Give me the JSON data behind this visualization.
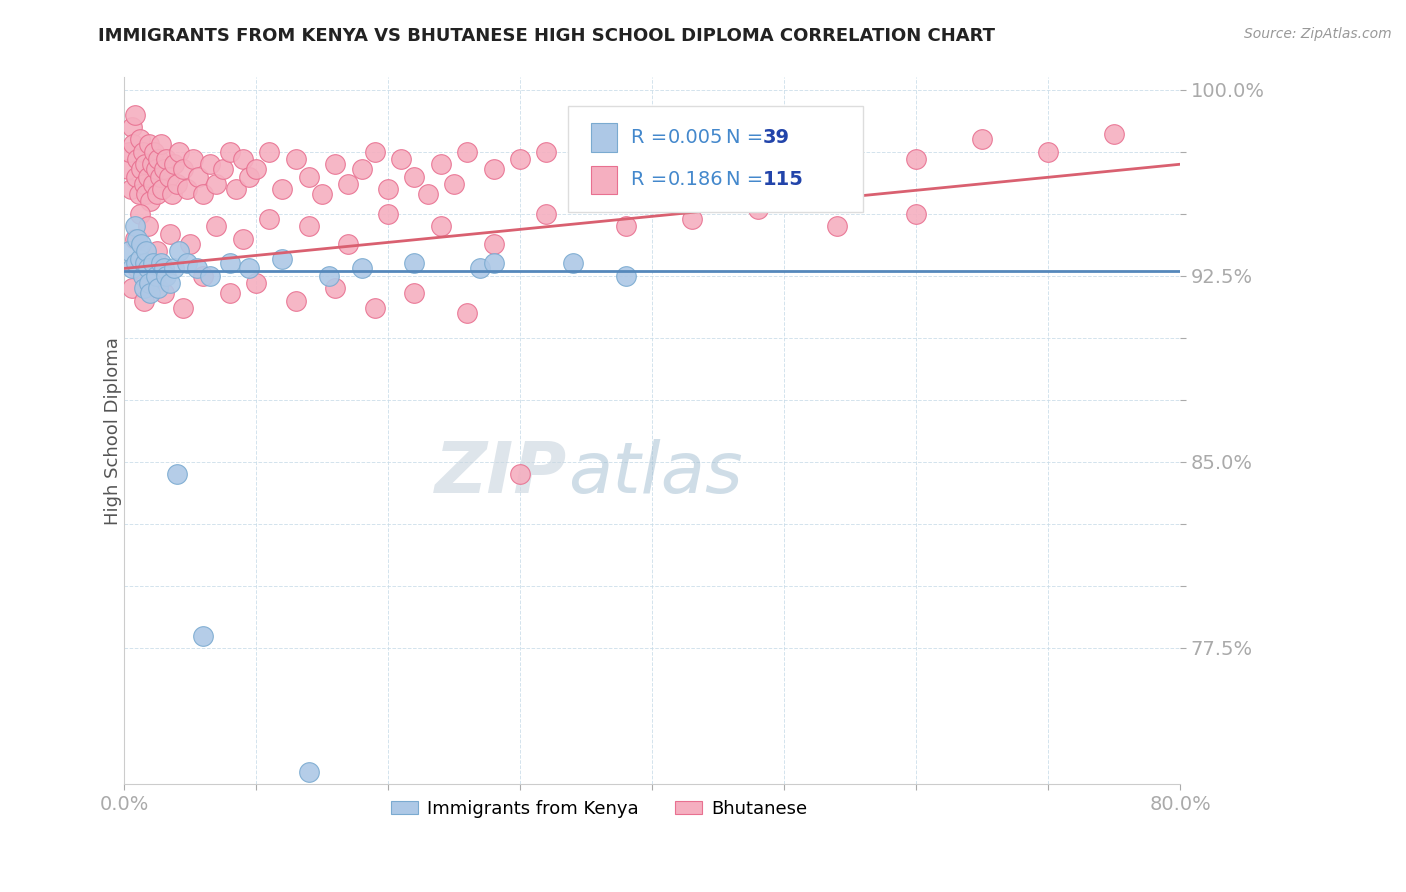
{
  "title": "IMMIGRANTS FROM KENYA VS BHUTANESE HIGH SCHOOL DIPLOMA CORRELATION CHART",
  "source_text": "Source: ZipAtlas.com",
  "ylabel": "High School Diploma",
  "xlim": [
    0.0,
    0.8
  ],
  "ylim": [
    0.72,
    1.005
  ],
  "kenya_R": 0.005,
  "kenya_N": 39,
  "bhutan_R": 0.186,
  "bhutan_N": 115,
  "kenya_color": "#adc8e6",
  "bhutan_color": "#f5afc0",
  "kenya_edge_color": "#7aaad0",
  "bhutan_edge_color": "#e87090",
  "trend_kenya_color": "#5588bb",
  "trend_bhutan_color": "#d96070",
  "grid_color": "#c8dce8",
  "axis_label_color": "#4488cc",
  "title_color": "#222222",
  "watermark_zip_color": "#c8d4e0",
  "watermark_atlas_color": "#a8c4d8",
  "ytick_vals": [
    0.775,
    0.8,
    0.825,
    0.85,
    0.875,
    0.9,
    0.925,
    0.975,
    1.0
  ],
  "ytick_show": {
    "0.775": "77.5%",
    "0.80": "",
    "0.825": "",
    "0.85": "85.0%",
    "0.875": "",
    "0.90": "",
    "0.925": "92.5%",
    "0.975": "",
    "1.00": "100.0%"
  },
  "kenya_scatter_x": [
    0.004,
    0.006,
    0.008,
    0.009,
    0.01,
    0.012,
    0.013,
    0.014,
    0.015,
    0.016,
    0.017,
    0.018,
    0.019,
    0.02,
    0.022,
    0.024,
    0.026,
    0.028,
    0.03,
    0.032,
    0.035,
    0.038,
    0.042,
    0.048,
    0.055,
    0.065,
    0.08,
    0.095,
    0.12,
    0.155,
    0.18,
    0.22,
    0.27,
    0.34,
    0.38,
    0.04,
    0.06,
    0.14,
    0.28
  ],
  "kenya_scatter_y": [
    0.935,
    0.928,
    0.945,
    0.93,
    0.94,
    0.932,
    0.938,
    0.925,
    0.92,
    0.93,
    0.935,
    0.928,
    0.922,
    0.918,
    0.93,
    0.925,
    0.92,
    0.93,
    0.928,
    0.925,
    0.922,
    0.928,
    0.935,
    0.93,
    0.928,
    0.925,
    0.93,
    0.928,
    0.932,
    0.925,
    0.928,
    0.93,
    0.928,
    0.93,
    0.925,
    0.845,
    0.78,
    0.725,
    0.93
  ],
  "bhutan_scatter_x": [
    0.003,
    0.004,
    0.005,
    0.006,
    0.007,
    0.008,
    0.009,
    0.01,
    0.011,
    0.012,
    0.013,
    0.014,
    0.015,
    0.016,
    0.017,
    0.018,
    0.019,
    0.02,
    0.021,
    0.022,
    0.023,
    0.024,
    0.025,
    0.026,
    0.027,
    0.028,
    0.029,
    0.03,
    0.032,
    0.034,
    0.036,
    0.038,
    0.04,
    0.042,
    0.045,
    0.048,
    0.052,
    0.056,
    0.06,
    0.065,
    0.07,
    0.075,
    0.08,
    0.085,
    0.09,
    0.095,
    0.1,
    0.11,
    0.12,
    0.13,
    0.14,
    0.15,
    0.16,
    0.17,
    0.18,
    0.19,
    0.2,
    0.21,
    0.22,
    0.23,
    0.24,
    0.25,
    0.26,
    0.28,
    0.3,
    0.32,
    0.35,
    0.38,
    0.42,
    0.46,
    0.5,
    0.55,
    0.6,
    0.65,
    0.7,
    0.75,
    0.008,
    0.012,
    0.018,
    0.025,
    0.035,
    0.05,
    0.07,
    0.09,
    0.11,
    0.14,
    0.17,
    0.2,
    0.24,
    0.28,
    0.32,
    0.38,
    0.43,
    0.48,
    0.54,
    0.6,
    0.006,
    0.01,
    0.015,
    0.02,
    0.03,
    0.045,
    0.06,
    0.08,
    0.1,
    0.13,
    0.16,
    0.19,
    0.22,
    0.26,
    0.3
  ],
  "bhutan_scatter_y": [
    0.968,
    0.975,
    0.96,
    0.985,
    0.978,
    0.99,
    0.965,
    0.972,
    0.958,
    0.98,
    0.968,
    0.975,
    0.962,
    0.97,
    0.958,
    0.965,
    0.978,
    0.955,
    0.97,
    0.962,
    0.975,
    0.968,
    0.958,
    0.972,
    0.965,
    0.978,
    0.96,
    0.968,
    0.972,
    0.965,
    0.958,
    0.97,
    0.962,
    0.975,
    0.968,
    0.96,
    0.972,
    0.965,
    0.958,
    0.97,
    0.962,
    0.968,
    0.975,
    0.96,
    0.972,
    0.965,
    0.968,
    0.975,
    0.96,
    0.972,
    0.965,
    0.958,
    0.97,
    0.962,
    0.968,
    0.975,
    0.96,
    0.972,
    0.965,
    0.958,
    0.97,
    0.962,
    0.975,
    0.968,
    0.972,
    0.975,
    0.978,
    0.968,
    0.975,
    0.98,
    0.968,
    0.978,
    0.972,
    0.98,
    0.975,
    0.982,
    0.94,
    0.95,
    0.945,
    0.935,
    0.942,
    0.938,
    0.945,
    0.94,
    0.948,
    0.945,
    0.938,
    0.95,
    0.945,
    0.938,
    0.95,
    0.945,
    0.948,
    0.952,
    0.945,
    0.95,
    0.92,
    0.928,
    0.915,
    0.922,
    0.918,
    0.912,
    0.925,
    0.918,
    0.922,
    0.915,
    0.92,
    0.912,
    0.918,
    0.91,
    0.845
  ]
}
